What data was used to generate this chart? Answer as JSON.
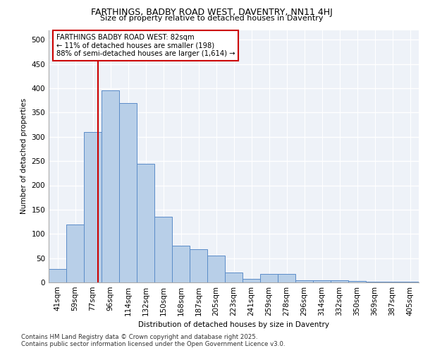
{
  "title1": "FARTHINGS, BADBY ROAD WEST, DAVENTRY, NN11 4HJ",
  "title2": "Size of property relative to detached houses in Daventry",
  "xlabel": "Distribution of detached houses by size in Daventry",
  "ylabel": "Number of detached properties",
  "categories": [
    "41sqm",
    "59sqm",
    "77sqm",
    "96sqm",
    "114sqm",
    "132sqm",
    "150sqm",
    "168sqm",
    "187sqm",
    "205sqm",
    "223sqm",
    "241sqm",
    "259sqm",
    "278sqm",
    "296sqm",
    "314sqm",
    "332sqm",
    "350sqm",
    "369sqm",
    "387sqm",
    "405sqm"
  ],
  "values": [
    28,
    120,
    310,
    395,
    370,
    245,
    135,
    75,
    68,
    55,
    20,
    8,
    18,
    18,
    5,
    5,
    4,
    3,
    2,
    2,
    2
  ],
  "bar_color": "#b8cfe8",
  "bar_edge_color": "#5b8cc8",
  "bg_color": "#eef2f8",
  "grid_color": "#ffffff",
  "marker_label": "FARTHINGS BADBY ROAD WEST: 82sqm",
  "marker_note1": "← 11% of detached houses are smaller (198)",
  "marker_note2": "88% of semi-detached houses are larger (1,614) →",
  "annotation_box_color": "#cc0000",
  "ylim": [
    0,
    520
  ],
  "yticks": [
    0,
    50,
    100,
    150,
    200,
    250,
    300,
    350,
    400,
    450,
    500
  ],
  "footnote1": "Contains HM Land Registry data © Crown copyright and database right 2025.",
  "footnote2": "Contains public sector information licensed under the Open Government Licence v3.0."
}
